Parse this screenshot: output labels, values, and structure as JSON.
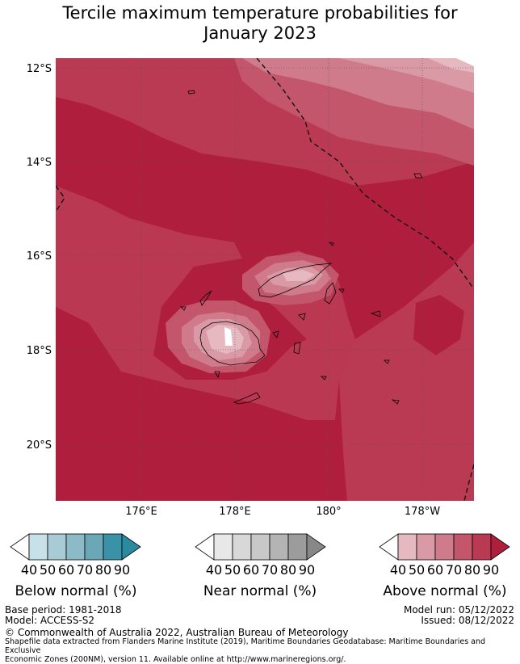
{
  "title_line1": "Tercile maximum temperature probabilities for",
  "title_line2": "January 2023",
  "map": {
    "lat_labels": [
      "12°S",
      "14°S",
      "16°S",
      "18°S",
      "20°S"
    ],
    "lon_labels": [
      "176°E",
      "178°E",
      "180°",
      "178°W"
    ],
    "colors": {
      "c40": "#e6b8c0",
      "c50": "#d99aa5",
      "c60": "#cf7b8b",
      "c70": "#c4566c",
      "c80": "#bb3a53",
      "c90": "#b01e3d",
      "white": "#ffffff"
    }
  },
  "colorbars": {
    "ticks": [
      "40",
      "50",
      "60",
      "70",
      "80",
      "90"
    ],
    "below": {
      "label": "Below normal (%)",
      "colors": [
        "#ffffff",
        "#c8e0e8",
        "#a9cbd5",
        "#8cbac6",
        "#6aa8b8",
        "#3a92a8",
        "#2a8aa0"
      ]
    },
    "near": {
      "label": "Near normal (%)",
      "colors": [
        "#ffffff",
        "#e8e8e8",
        "#d8d8d8",
        "#c8c8c8",
        "#b4b4b4",
        "#9c9c9c",
        "#888888"
      ]
    },
    "above": {
      "label": "Above normal (%)",
      "colors": [
        "#ffffff",
        "#e6b8c0",
        "#d99aa5",
        "#cf7b8b",
        "#c4566c",
        "#bb3a53",
        "#b01e3d"
      ]
    }
  },
  "footer": {
    "base_period": "Base period: 1981-2018",
    "model": "Model: ACCESS-S2",
    "model_run": "Model run: 05/12/2022",
    "issued": "Issued: 08/12/2022",
    "copyright": "© Commonwealth of Australia 2022, Australian Bureau of Meteorology",
    "shapefile_line1": "Shapefile data extracted from Flanders Marine Institute (2019), Maritime Boundaries Geodatabase: Maritime Boundaries and Exclusive",
    "shapefile_line2": "Economic Zones (200NM), version 11. Available online at http://www.marineregions.org/."
  }
}
